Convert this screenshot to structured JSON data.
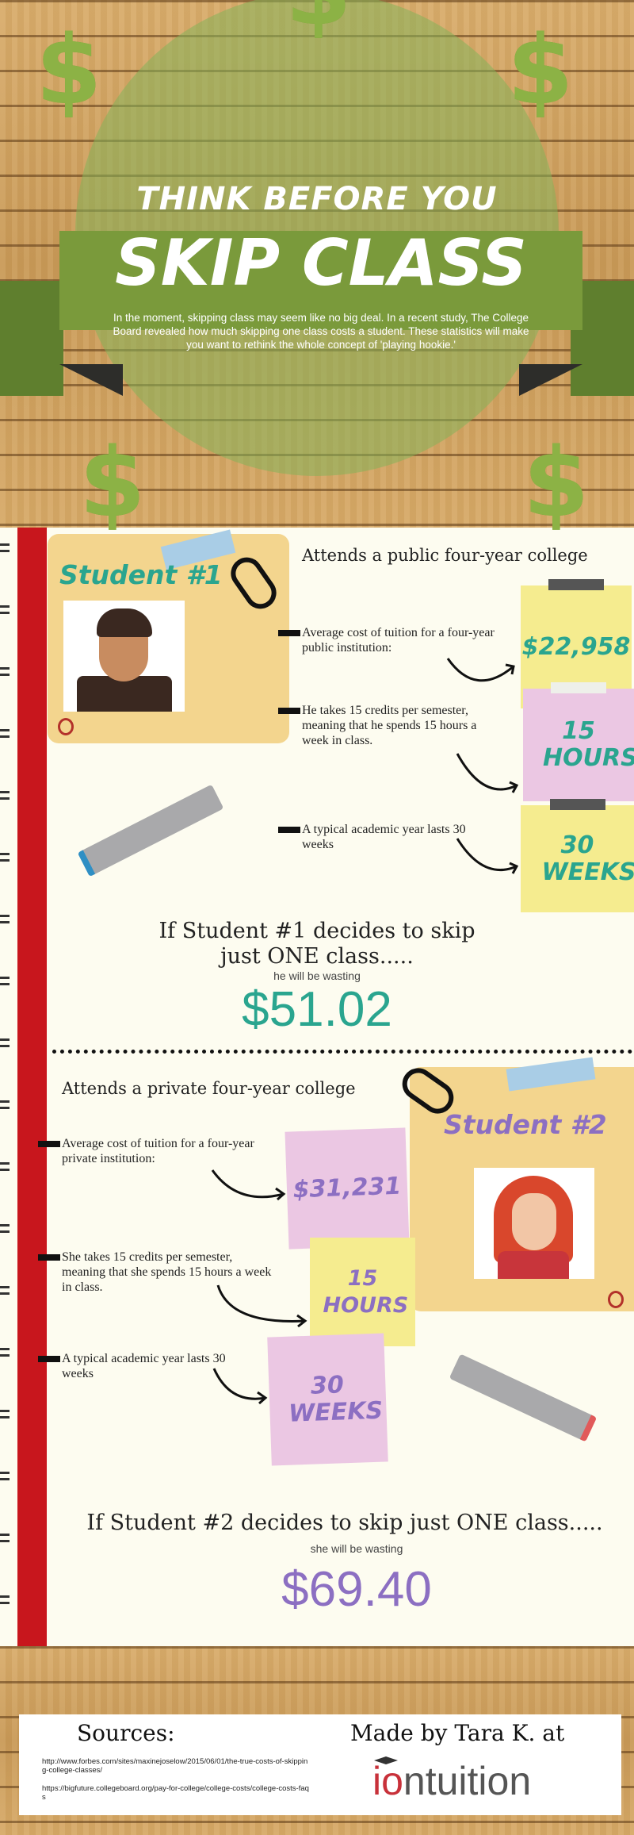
{
  "header": {
    "title_line1": "THINK BEFORE YOU",
    "title_line2": "SKIP CLASS",
    "description": "In the moment, skipping class may seem like no big deal. In a recent study, The College Board revealed how much skipping one class costs a student. These statistics will make you want to rethink the whole concept of 'playing hookie.'"
  },
  "colors": {
    "teal": "#2aa58f",
    "purple": "#8c6fc2",
    "green": "#7a9a3b",
    "red": "#c8161d",
    "yellow_note": "#f5ec8f",
    "pink_note": "#ebc7e3"
  },
  "student1": {
    "label": "Student #1",
    "attends": "Attends a public four-year college",
    "facts": [
      {
        "text": "Average cost of tuition for a four-year public institution:",
        "note": "$22,958"
      },
      {
        "text": "He takes 15 credits per semester, meaning that he spends 15 hours a week in class.",
        "note": "15 HOURS"
      },
      {
        "text": "A typical academic year lasts 30 weeks",
        "note": "30 WEEKS"
      }
    ],
    "conclusion_line1": "If Student #1 decides to skip",
    "conclusion_line2": "just ONE class.....",
    "wasting": "he will be wasting",
    "amount": "$51.02"
  },
  "student2": {
    "label": "Student #2",
    "attends": "Attends a private four-year college",
    "facts": [
      {
        "text": "Average cost of tuition for a four-year private institution:",
        "note": "$31,231"
      },
      {
        "text": "She takes 15 credits per semester, meaning that she spends 15 hours a week in class.",
        "note": "15 HOURS"
      },
      {
        "text": "A typical academic year lasts 30 weeks",
        "note": "30 WEEKS"
      }
    ],
    "conclusion": "If Student #2 decides to skip just ONE class.....",
    "wasting": "she will be wasting",
    "amount": "$69.40"
  },
  "footer": {
    "sources_title": "Sources:",
    "sources": [
      "http://www.forbes.com/sites/maxinejoselow/2015/06/01/the-true-costs-of-skipping-college-classes/",
      "https://bigfuture.collegeboard.org/pay-for-college/college-costs/college-costs-faqs"
    ],
    "made_by": "Made by Tara K. at",
    "logo": "iontuition"
  }
}
